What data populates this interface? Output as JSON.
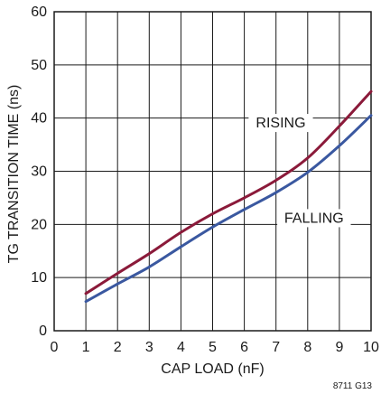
{
  "chart_data": {
    "type": "line",
    "title": "",
    "xlabel": "CAP LOAD (nF)",
    "ylabel": "TG TRANSITION TIME (ns)",
    "xlim": [
      0,
      10
    ],
    "ylim": [
      0,
      60
    ],
    "x_ticks": [
      0,
      1,
      2,
      3,
      4,
      5,
      6,
      7,
      8,
      9,
      10
    ],
    "y_ticks": [
      0,
      10,
      20,
      30,
      40,
      50,
      60
    ],
    "grid": true,
    "figure_id": "8711 G13",
    "series": [
      {
        "name": "RISING",
        "color": "#8b1a3a",
        "x": [
          1,
          2,
          3,
          4,
          5,
          6,
          7,
          8,
          9,
          10
        ],
        "y": [
          7,
          10.8,
          14.5,
          18.5,
          22,
          25,
          28.3,
          32.5,
          38.5,
          45
        ]
      },
      {
        "name": "FALLING",
        "color": "#3a58a0",
        "x": [
          1,
          2,
          3,
          4,
          5,
          6,
          7,
          8,
          9,
          10
        ],
        "y": [
          5.5,
          8.8,
          12,
          15.8,
          19.5,
          22.8,
          26,
          29.8,
          34.8,
          40.5
        ]
      }
    ]
  }
}
